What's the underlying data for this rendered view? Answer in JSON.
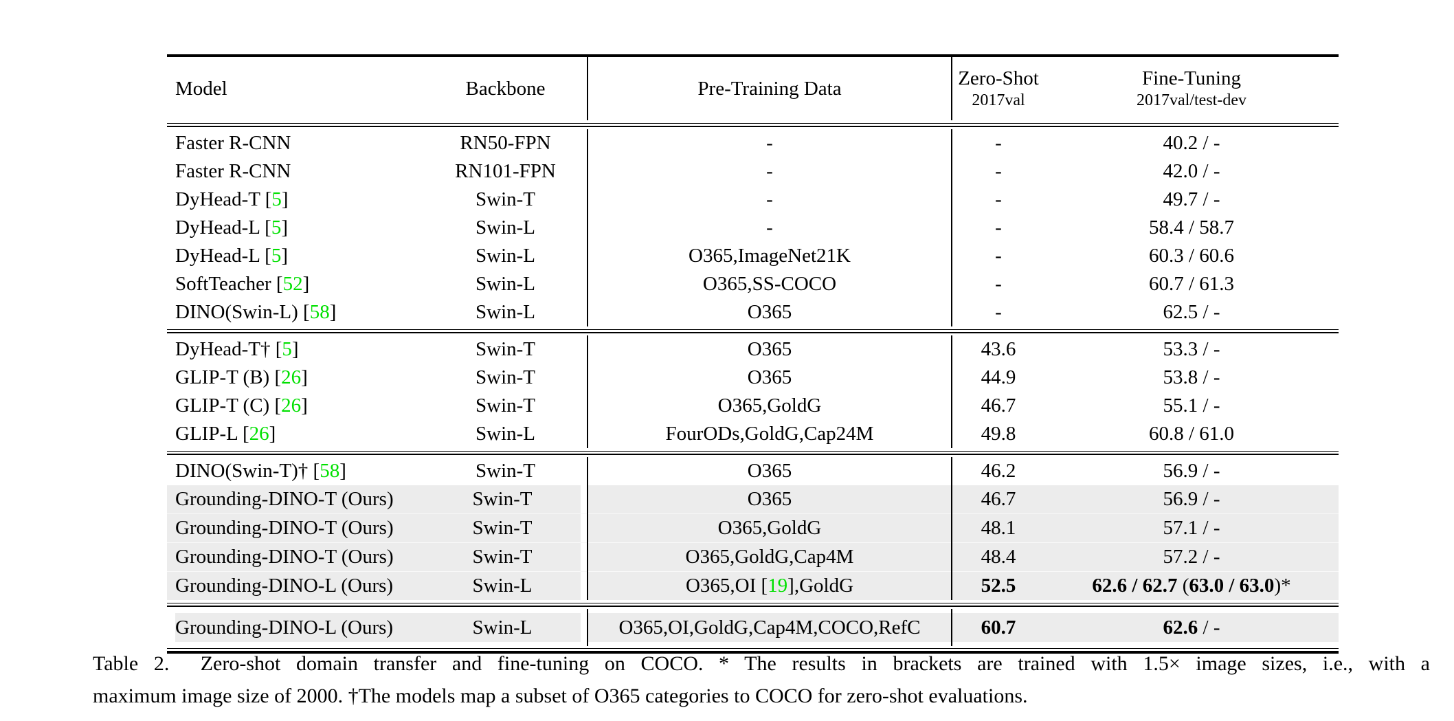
{
  "table": {
    "header": {
      "model": "Model",
      "backbone": "Backbone",
      "pretrain": "Pre-Training Data",
      "zero_shot": {
        "title": "Zero-Shot",
        "sub": "2017val"
      },
      "fine_tuning": {
        "title": "Fine-Tuning",
        "sub": "2017val/test-dev"
      }
    },
    "colors": {
      "citation_green": "#00e000",
      "row_shade": "#ececec",
      "rule_black": "#000000"
    },
    "sections": [
      {
        "rows": [
          {
            "shaded": false,
            "model": [
              [
                "Faster R-CNN",
                ""
              ]
            ],
            "backbone": [
              [
                "RN50-FPN",
                ""
              ]
            ],
            "pretrain": [
              [
                "-",
                ""
              ]
            ],
            "zero_shot": [
              [
                "-",
                ""
              ]
            ],
            "fine_tuning": [
              [
                "40.2 / -",
                ""
              ]
            ]
          },
          {
            "shaded": false,
            "model": [
              [
                "Faster R-CNN",
                ""
              ]
            ],
            "backbone": [
              [
                "RN101-FPN",
                ""
              ]
            ],
            "pretrain": [
              [
                "-",
                ""
              ]
            ],
            "zero_shot": [
              [
                "-",
                ""
              ]
            ],
            "fine_tuning": [
              [
                "42.0 / -",
                ""
              ]
            ]
          },
          {
            "shaded": false,
            "model": [
              [
                "DyHead-T [",
                ""
              ],
              [
                "5",
                "green"
              ],
              [
                "]",
                ""
              ]
            ],
            "backbone": [
              [
                "Swin-T",
                ""
              ]
            ],
            "pretrain": [
              [
                "-",
                ""
              ]
            ],
            "zero_shot": [
              [
                "-",
                ""
              ]
            ],
            "fine_tuning": [
              [
                "49.7 / -",
                ""
              ]
            ]
          },
          {
            "shaded": false,
            "model": [
              [
                "DyHead-L [",
                ""
              ],
              [
                "5",
                "green"
              ],
              [
                "]",
                ""
              ]
            ],
            "backbone": [
              [
                "Swin-L",
                ""
              ]
            ],
            "pretrain": [
              [
                "-",
                ""
              ]
            ],
            "zero_shot": [
              [
                "-",
                ""
              ]
            ],
            "fine_tuning": [
              [
                "58.4 / 58.7",
                ""
              ]
            ]
          },
          {
            "shaded": false,
            "model": [
              [
                "DyHead-L [",
                ""
              ],
              [
                "5",
                "green"
              ],
              [
                "]",
                ""
              ]
            ],
            "backbone": [
              [
                "Swin-L",
                ""
              ]
            ],
            "pretrain": [
              [
                "O365,ImageNet21K",
                ""
              ]
            ],
            "zero_shot": [
              [
                "-",
                ""
              ]
            ],
            "fine_tuning": [
              [
                "60.3 / 60.6",
                ""
              ]
            ]
          },
          {
            "shaded": false,
            "model": [
              [
                "SoftTeacher [",
                ""
              ],
              [
                "52",
                "green"
              ],
              [
                "]",
                ""
              ]
            ],
            "backbone": [
              [
                "Swin-L",
                ""
              ]
            ],
            "pretrain": [
              [
                "O365,SS-COCO",
                ""
              ]
            ],
            "zero_shot": [
              [
                "-",
                ""
              ]
            ],
            "fine_tuning": [
              [
                "60.7 / 61.3",
                ""
              ]
            ]
          },
          {
            "shaded": false,
            "model": [
              [
                "DINO(Swin-L) [",
                ""
              ],
              [
                "58",
                "green"
              ],
              [
                "]",
                ""
              ]
            ],
            "backbone": [
              [
                "Swin-L",
                ""
              ]
            ],
            "pretrain": [
              [
                "O365",
                ""
              ]
            ],
            "zero_shot": [
              [
                "-",
                ""
              ]
            ],
            "fine_tuning": [
              [
                "62.5 / -",
                ""
              ]
            ]
          }
        ]
      },
      {
        "rows": [
          {
            "shaded": false,
            "model": [
              [
                "DyHead-T† [",
                ""
              ],
              [
                "5",
                "green"
              ],
              [
                "]",
                ""
              ]
            ],
            "backbone": [
              [
                "Swin-T",
                ""
              ]
            ],
            "pretrain": [
              [
                "O365",
                ""
              ]
            ],
            "zero_shot": [
              [
                "43.6",
                ""
              ]
            ],
            "fine_tuning": [
              [
                "53.3 / -",
                ""
              ]
            ]
          },
          {
            "shaded": false,
            "model": [
              [
                "GLIP-T (B) [",
                ""
              ],
              [
                "26",
                "green"
              ],
              [
                "]",
                ""
              ]
            ],
            "backbone": [
              [
                "Swin-T",
                ""
              ]
            ],
            "pretrain": [
              [
                "O365",
                ""
              ]
            ],
            "zero_shot": [
              [
                "44.9",
                ""
              ]
            ],
            "fine_tuning": [
              [
                "53.8 / -",
                ""
              ]
            ]
          },
          {
            "shaded": false,
            "model": [
              [
                "GLIP-T (C) [",
                ""
              ],
              [
                "26",
                "green"
              ],
              [
                "]",
                ""
              ]
            ],
            "backbone": [
              [
                "Swin-T",
                ""
              ]
            ],
            "pretrain": [
              [
                "O365,GoldG",
                ""
              ]
            ],
            "zero_shot": [
              [
                "46.7",
                ""
              ]
            ],
            "fine_tuning": [
              [
                "55.1 / -",
                ""
              ]
            ]
          },
          {
            "shaded": false,
            "model": [
              [
                "GLIP-L [",
                ""
              ],
              [
                "26",
                "green"
              ],
              [
                "]",
                ""
              ]
            ],
            "backbone": [
              [
                "Swin-L",
                ""
              ]
            ],
            "pretrain": [
              [
                "FourODs,GoldG,Cap24M",
                ""
              ]
            ],
            "zero_shot": [
              [
                "49.8",
                ""
              ]
            ],
            "fine_tuning": [
              [
                "60.8 / 61.0",
                ""
              ]
            ]
          }
        ]
      },
      {
        "rows": [
          {
            "shaded": false,
            "model": [
              [
                "DINO(Swin-T)† [",
                ""
              ],
              [
                "58",
                "green"
              ],
              [
                "]",
                ""
              ]
            ],
            "backbone": [
              [
                "Swin-T",
                ""
              ]
            ],
            "pretrain": [
              [
                "O365",
                ""
              ]
            ],
            "zero_shot": [
              [
                "46.2",
                ""
              ]
            ],
            "fine_tuning": [
              [
                "56.9 / -",
                ""
              ]
            ]
          },
          {
            "shaded": true,
            "model": [
              [
                "Grounding-DINO-T (Ours)",
                ""
              ]
            ],
            "backbone": [
              [
                "Swin-T",
                ""
              ]
            ],
            "pretrain": [
              [
                "O365",
                ""
              ]
            ],
            "zero_shot": [
              [
                "46.7",
                ""
              ]
            ],
            "fine_tuning": [
              [
                "56.9 / -",
                ""
              ]
            ]
          },
          {
            "shaded": true,
            "model": [
              [
                "Grounding-DINO-T (Ours)",
                ""
              ]
            ],
            "backbone": [
              [
                "Swin-T",
                ""
              ]
            ],
            "pretrain": [
              [
                "O365,GoldG",
                ""
              ]
            ],
            "zero_shot": [
              [
                "48.1",
                ""
              ]
            ],
            "fine_tuning": [
              [
                "57.1 / -",
                ""
              ]
            ]
          },
          {
            "shaded": true,
            "model": [
              [
                "Grounding-DINO-T (Ours)",
                ""
              ]
            ],
            "backbone": [
              [
                "Swin-T",
                ""
              ]
            ],
            "pretrain": [
              [
                "O365,GoldG,Cap4M",
                ""
              ]
            ],
            "zero_shot": [
              [
                "48.4",
                ""
              ]
            ],
            "fine_tuning": [
              [
                "57.2 / -",
                ""
              ]
            ]
          },
          {
            "shaded": true,
            "model": [
              [
                "Grounding-DINO-L (Ours)",
                ""
              ]
            ],
            "backbone": [
              [
                "Swin-L",
                ""
              ]
            ],
            "pretrain": [
              [
                "O365,OI [",
                ""
              ],
              [
                "19",
                "green"
              ],
              [
                "],GoldG",
                ""
              ]
            ],
            "zero_shot": [
              [
                "52.5",
                "bold"
              ]
            ],
            "fine_tuning": [
              [
                "62.6 / 62.7",
                "bold"
              ],
              [
                " (",
                ""
              ],
              [
                "63.0 / 63.0",
                "bold"
              ],
              [
                ")*",
                ""
              ]
            ]
          }
        ]
      },
      {
        "padded": true,
        "rows": [
          {
            "shaded": true,
            "model": [
              [
                "Grounding-DINO-L (Ours)",
                ""
              ]
            ],
            "backbone": [
              [
                "Swin-L",
                ""
              ]
            ],
            "pretrain": [
              [
                "O365,OI,GoldG,Cap4M,COCO,RefC",
                ""
              ]
            ],
            "zero_shot": [
              [
                "60.7",
                "bold"
              ]
            ],
            "fine_tuning": [
              [
                "62.6",
                "bold"
              ],
              [
                " / -",
                ""
              ]
            ]
          }
        ]
      }
    ]
  },
  "caption": {
    "line1": "Table 2.  Zero-shot domain transfer and fine-tuning on COCO. * The results in brackets are trained with 1.5× image sizes, i.e., with a",
    "line2": "maximum image size of 2000. †The models map a subset of O365 categories to COCO for zero-shot evaluations."
  }
}
